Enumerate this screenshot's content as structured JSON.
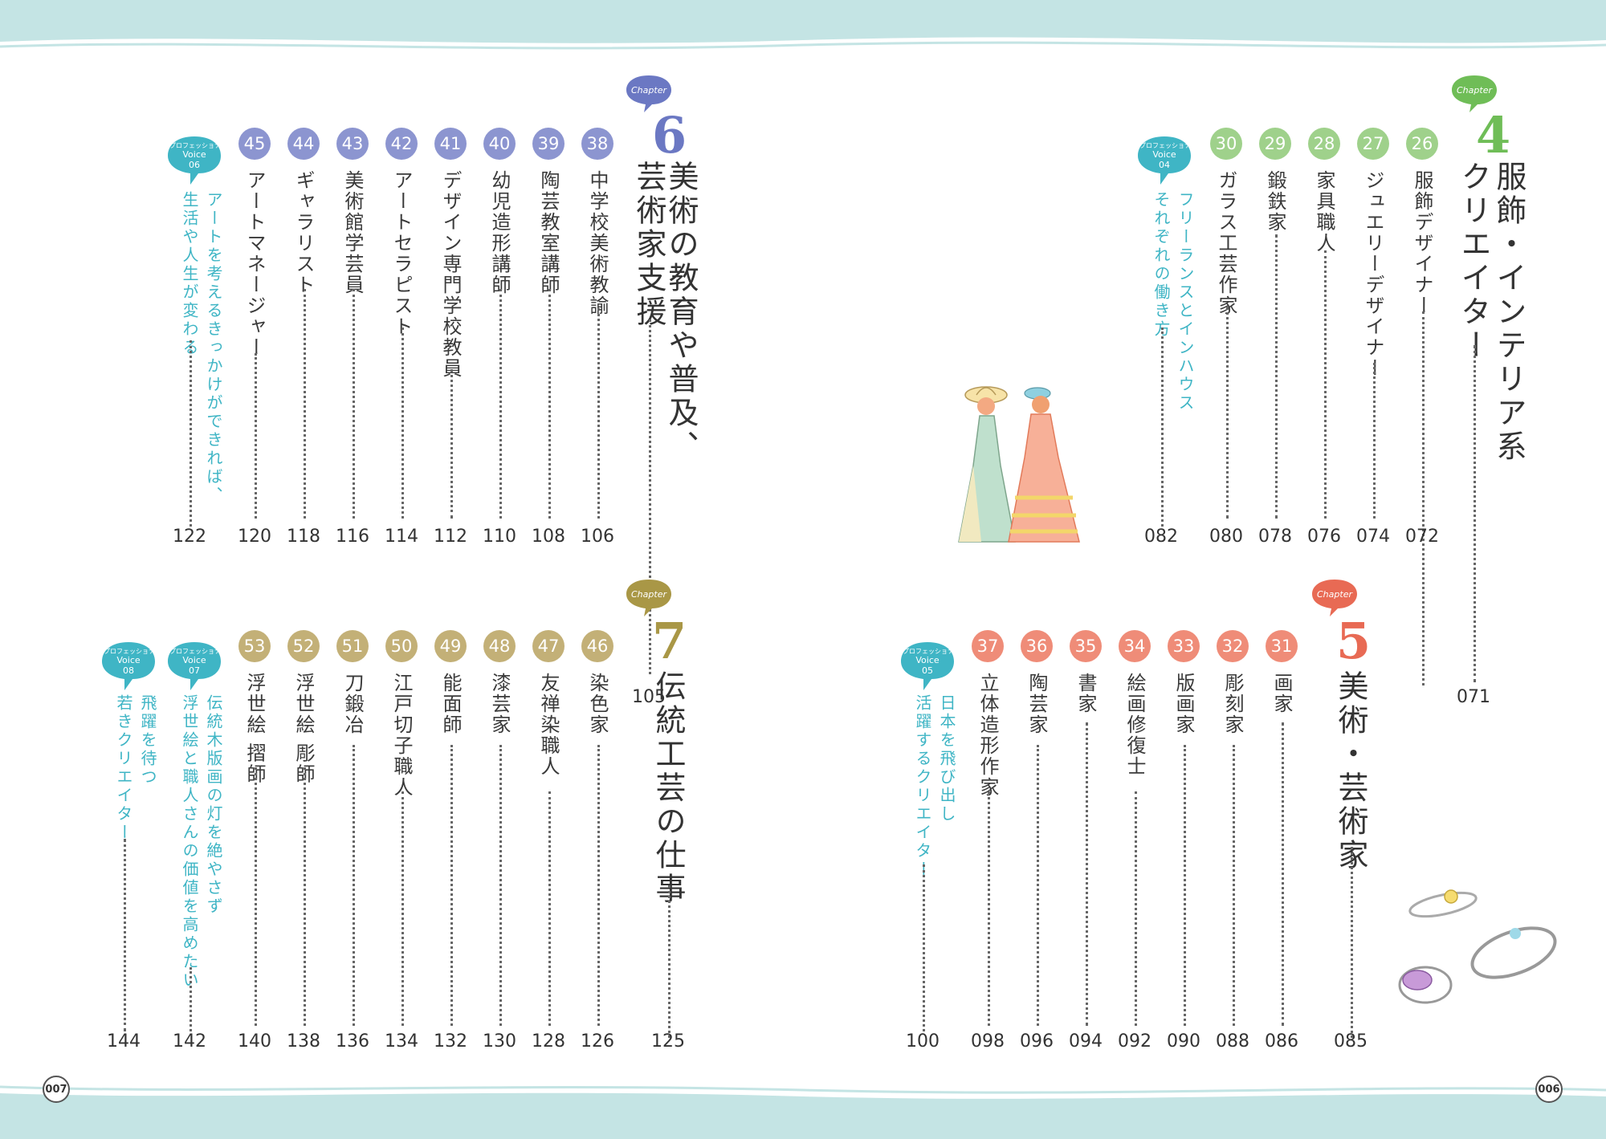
{
  "colors": {
    "band": "#c4e4e4",
    "chapter4": "#6fbd57",
    "chapter5": "#e86a54",
    "chapter6": "#6b78c3",
    "chapter7": "#a99746",
    "voice": "#3fb5c5",
    "badge4": "#9fd18b",
    "badge5": "#ef8c78",
    "badge6": "#8c95d0",
    "badge7": "#c3b077"
  },
  "page_numbers": {
    "left": "007",
    "right": "006"
  },
  "chapters": {
    "c4": {
      "label": "Chapter",
      "number": "4",
      "title": [
        "服飾・インテリア系",
        "クリエイター"
      ],
      "page": "071",
      "items": [
        {
          "num": "26",
          "text": "服飾デザイナー",
          "page": "072"
        },
        {
          "num": "27",
          "text": "ジュエリーデザイナー",
          "page": "074"
        },
        {
          "num": "28",
          "text": "家具職人",
          "page": "076"
        },
        {
          "num": "29",
          "text": "鍛鉄家",
          "page": "078"
        },
        {
          "num": "30",
          "text": "ガラス工芸作家",
          "page": "080"
        }
      ],
      "voice": {
        "label": "プロフェッショナル",
        "word": "Voice",
        "num": "04",
        "lines": [
          "フリーランスとインハウス",
          "それぞれの働き方"
        ],
        "page": "082"
      }
    },
    "c5": {
      "label": "Chapter",
      "number": "5",
      "title": [
        "美術・芸術家"
      ],
      "page": "085",
      "items": [
        {
          "num": "31",
          "text": "画家",
          "page": "086"
        },
        {
          "num": "32",
          "text": "彫刻家",
          "page": "088"
        },
        {
          "num": "33",
          "text": "版画家",
          "page": "090"
        },
        {
          "num": "34",
          "text": "絵画修復士",
          "page": "092"
        },
        {
          "num": "35",
          "text": "書家",
          "page": "094"
        },
        {
          "num": "36",
          "text": "陶芸家",
          "page": "096"
        },
        {
          "num": "37",
          "text": "立体造形作家",
          "page": "098"
        }
      ],
      "voice": {
        "label": "プロフェッショナル",
        "word": "Voice",
        "num": "05",
        "lines": [
          "日本を飛び出し",
          "活躍するクリエイター"
        ],
        "page": "100"
      }
    },
    "c6": {
      "label": "Chapter",
      "number": "6",
      "title": [
        "美術の教育や普及、",
        "芸術家支援"
      ],
      "page": "105",
      "items": [
        {
          "num": "38",
          "text": "中学校美術教諭",
          "page": "106"
        },
        {
          "num": "39",
          "text": "陶芸教室講師",
          "page": "108"
        },
        {
          "num": "40",
          "text": "幼児造形講師",
          "page": "110"
        },
        {
          "num": "41",
          "text": "デザイン専門学校教員",
          "page": "112"
        },
        {
          "num": "42",
          "text": "アートセラピスト",
          "page": "114"
        },
        {
          "num": "43",
          "text": "美術館学芸員",
          "page": "116"
        },
        {
          "num": "44",
          "text": "ギャラリスト",
          "page": "118"
        },
        {
          "num": "45",
          "text": "アートマネージャー",
          "page": "120"
        }
      ],
      "voice": {
        "label": "プロフェッショナル",
        "word": "Voice",
        "num": "06",
        "lines": [
          "アートを考えるきっかけができれば、",
          "生活や人生が変わる"
        ],
        "page": "122"
      }
    },
    "c7": {
      "label": "Chapter",
      "number": "7",
      "title": [
        "伝統工芸の仕事"
      ],
      "page": "125",
      "items": [
        {
          "num": "46",
          "text": "染色家",
          "page": "126"
        },
        {
          "num": "47",
          "text": "友禅染職人",
          "page": "128"
        },
        {
          "num": "48",
          "text": "漆芸家",
          "page": "130"
        },
        {
          "num": "49",
          "text": "能面師",
          "page": "132"
        },
        {
          "num": "50",
          "text": "江戸切子職人",
          "page": "134"
        },
        {
          "num": "51",
          "text": "刀鍛冶",
          "page": "136"
        },
        {
          "num": "52",
          "text": "浮世絵 彫師",
          "page": "138"
        },
        {
          "num": "53",
          "text": "浮世絵 摺師",
          "page": "140"
        }
      ],
      "voices": [
        {
          "label": "プロフェッショナル",
          "word": "Voice",
          "num": "07",
          "lines": [
            "伝統木版画の灯を絶やさず",
            "浮世絵と職人さんの価値を高めたい"
          ],
          "page": "142"
        },
        {
          "label": "プロフェッショナル",
          "word": "Voice",
          "num": "08",
          "lines": [
            "飛躍を待つ",
            "若きクリエイター"
          ],
          "page": "144"
        }
      ]
    }
  }
}
